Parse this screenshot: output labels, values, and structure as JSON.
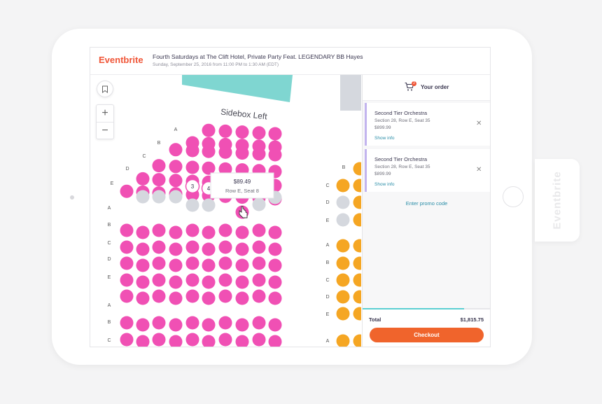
{
  "brand": {
    "logo": "Eventbrite",
    "side_tab": "Eventbrite"
  },
  "event": {
    "title": "Fourth Saturdays at The Clift Hotel, Private Party Feat. LEGENDARY BB Hayes",
    "date": "Sunday, September 25, 2016 from 11:00 PM to 1:30 AM (EDT)"
  },
  "map": {
    "section_label": "Sidebox Left",
    "zoom_in": "+",
    "zoom_out": "−",
    "left_row_labels_top": [
      "A",
      "B",
      "C",
      "D",
      "E"
    ],
    "left_row_labels_mid": [
      "A",
      "B",
      "C",
      "D",
      "E"
    ],
    "left_row_labels_bottom": [
      "A",
      "B",
      "C"
    ],
    "right_row_labels_top": [
      "B",
      "C",
      "D",
      "E"
    ],
    "right_row_labels_mid": [
      "A",
      "B",
      "C",
      "D",
      "E"
    ],
    "right_row_labels_bottom": [
      "A"
    ],
    "selected_seats": [
      "3",
      "4"
    ],
    "tooltip": {
      "price": "$89.49",
      "location": "Row E, Seat 8"
    },
    "colors": {
      "available_left": "#f050b4",
      "available_right": "#f5a623",
      "unavailable": "#d5d8de",
      "stage": "#7fd6d1"
    }
  },
  "order": {
    "title": "Your order",
    "badge": "2",
    "items": [
      {
        "name": "Second Tier Orchestra",
        "section": "Section 28, Row E, Seat 35",
        "price": "$899.99",
        "info": "Show info"
      },
      {
        "name": "Second Tier Orchestra",
        "section": "Section 28, Row E, Seat 35",
        "price": "$899.99",
        "info": "Show info"
      }
    ],
    "promo": "Enter promo code",
    "total_label": "Total",
    "total_value": "$1,815.75",
    "checkout": "Checkout"
  }
}
